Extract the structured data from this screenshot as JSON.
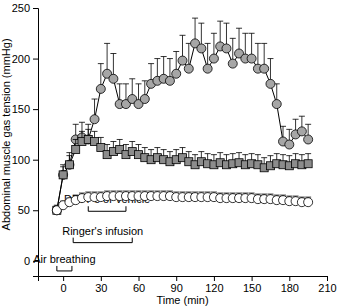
{
  "chart_data": {
    "type": "line",
    "x_label": "Time (min)",
    "y_label": "Abdominal muscle gas tension (mmHg)",
    "x": [
      -5,
      0,
      5,
      10,
      15,
      20,
      25,
      30,
      35,
      40,
      45,
      50,
      55,
      60,
      65,
      70,
      75,
      80,
      85,
      90,
      95,
      100,
      105,
      110,
      115,
      120,
      125,
      130,
      135,
      140,
      145,
      150,
      155,
      160,
      165,
      170,
      175,
      180,
      185,
      190,
      195
    ],
    "series": [
      {
        "color": "#a6a6a6",
        "marker": "circle",
        "values": [
          50,
          85,
          95,
          120,
          122,
          120,
          140,
          170,
          185,
          180,
          155,
          155,
          160,
          155,
          160,
          175,
          178,
          180,
          178,
          185,
          198,
          190,
          215,
          210,
          190,
          200,
          212,
          210,
          195,
          205,
          200,
          200,
          190,
          190,
          175,
          155,
          118,
          115,
          125,
          128,
          120
        ],
        "errors": [
          5,
          10,
          12,
          15,
          15,
          15,
          20,
          25,
          30,
          25,
          20,
          20,
          20,
          20,
          18,
          20,
          22,
          22,
          22,
          22,
          25,
          25,
          25,
          25,
          25,
          25,
          25,
          25,
          25,
          25,
          25,
          25,
          25,
          25,
          25,
          20,
          15,
          15,
          15,
          15,
          15
        ]
      },
      {
        "color": "#8c8c8c",
        "marker": "square",
        "values": [
          50,
          85,
          95,
          110,
          118,
          120,
          118,
          112,
          105,
          108,
          110,
          105,
          108,
          105,
          102,
          100,
          102,
          100,
          98,
          100,
          102,
          98,
          95,
          98,
          96,
          95,
          97,
          95,
          96,
          97,
          95,
          96,
          95,
          92,
          94,
          96,
          95,
          94,
          96,
          95,
          96
        ],
        "errors": [
          4,
          8,
          9,
          10,
          10,
          10,
          10,
          10,
          10,
          10,
          10,
          10,
          10,
          10,
          10,
          10,
          10,
          10,
          10,
          10,
          10,
          10,
          10,
          10,
          10,
          10,
          10,
          10,
          10,
          10,
          10,
          10,
          10,
          10,
          10,
          10,
          10,
          10,
          10,
          10,
          10
        ]
      },
      {
        "color": "#ffffff",
        "marker": "circle",
        "values": [
          50,
          55,
          58,
          60,
          62,
          63,
          63,
          63,
          64,
          64,
          64,
          64,
          64,
          64,
          64,
          64,
          64,
          64,
          64,
          63,
          63,
          63,
          63,
          63,
          63,
          63,
          62,
          62,
          62,
          62,
          62,
          62,
          61,
          61,
          61,
          60,
          60,
          59,
          59,
          58,
          58
        ],
        "errors": [
          3,
          4,
          4,
          5,
          5,
          5,
          5,
          5,
          5,
          5,
          5,
          5,
          5,
          5,
          5,
          5,
          5,
          5,
          5,
          5,
          5,
          5,
          5,
          5,
          5,
          5,
          5,
          5,
          5,
          5,
          5,
          5,
          5,
          5,
          5,
          5,
          5,
          5,
          5,
          5,
          5
        ]
      }
    ],
    "annotations": [
      {
        "text": "DDFPe or vehicle",
        "x": [
          20,
          50
        ],
        "y": 49
      },
      {
        "text": "Ringer's infusion",
        "x": [
          8,
          55
        ],
        "y": 18
      },
      {
        "text": "Air breathing",
        "x": [
          -5,
          7
        ],
        "y": -10
      }
    ],
    "xlim": [
      -20,
      210
    ],
    "xticks": [
      0,
      30,
      60,
      90,
      120,
      150,
      180,
      210
    ],
    "ylim": [
      -15,
      250
    ],
    "yticks": [
      0,
      50,
      100,
      150,
      200,
      250
    ]
  }
}
